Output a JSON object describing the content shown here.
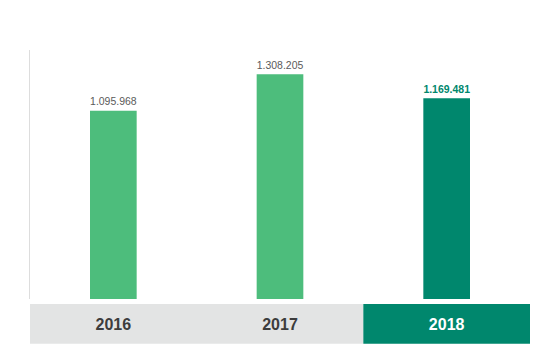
{
  "chart_data": {
    "type": "bar",
    "categories": [
      "2016",
      "2017",
      "2018"
    ],
    "values": [
      1095968,
      1308205,
      1169481
    ],
    "value_labels": [
      "1.095.968",
      "1.308.205",
      "1.169.481"
    ],
    "colors": [
      "#4dbd7c",
      "#4dbd7c",
      "#00876d"
    ],
    "ylim": [
      0,
      1450000
    ],
    "data_labels": true,
    "tick_labels": "x",
    "grid": false
  }
}
